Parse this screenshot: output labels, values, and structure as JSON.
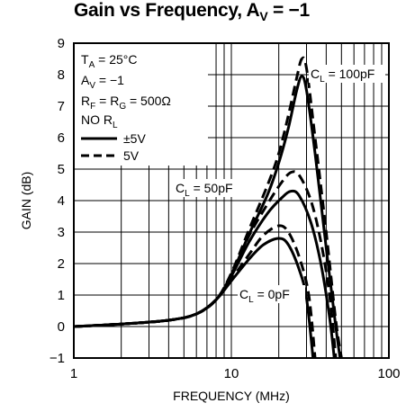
{
  "chart_data": {
    "type": "line",
    "title_main": "Gain vs Frequency, A",
    "title_sub": "V",
    "title_end": " = −1",
    "xlabel": "FREQUENCY (MHz)",
    "ylabel": "GAIN (dB)",
    "xscale": "log",
    "xlim": [
      1,
      100
    ],
    "ylim": [
      -1,
      9
    ],
    "grid": true,
    "x_ticks": [
      "1",
      "10",
      "100"
    ],
    "y_ticks": [
      "−1",
      "0",
      "1",
      "2",
      "3",
      "4",
      "5",
      "6",
      "7",
      "8",
      "9"
    ],
    "conditions": {
      "ta": {
        "main": "T",
        "sub": "A",
        "rest": " = 25°C"
      },
      "av": {
        "main": "A",
        "sub": "V",
        "rest": " = −1"
      },
      "rf": {
        "main": "R",
        "sub1": "F",
        "mid": " = R",
        "sub2": "G",
        "rest": " = 500Ω"
      },
      "nor": {
        "main": "NO R",
        "sub": "L"
      }
    },
    "legend": [
      {
        "label": "±5V",
        "style": "solid"
      },
      {
        "label": "5V",
        "style": "dashed"
      }
    ],
    "annotations": [
      {
        "id": "cl100",
        "main": "C",
        "sub": "L",
        "rest": " = 100pF"
      },
      {
        "id": "cl50",
        "main": "C",
        "sub": "L",
        "rest": " = 50pF"
      },
      {
        "id": "cl0",
        "main": "C",
        "sub": "L",
        "rest": " = 0pF"
      }
    ],
    "series": [
      {
        "supply": "±5V",
        "cl": "0pF",
        "style": "solid",
        "points": [
          [
            1,
            0
          ],
          [
            2,
            0.08
          ],
          [
            4,
            0.2
          ],
          [
            6,
            0.4
          ],
          [
            8,
            0.85
          ],
          [
            10,
            1.45
          ],
          [
            13,
            2.15
          ],
          [
            16,
            2.6
          ],
          [
            20,
            2.8
          ],
          [
            23,
            2.6
          ],
          [
            27,
            1.8
          ],
          [
            30,
            0.9
          ],
          [
            33,
            -1
          ]
        ]
      },
      {
        "supply": "5V",
        "cl": "0pF",
        "style": "dashed",
        "points": [
          [
            1,
            0
          ],
          [
            2,
            0.08
          ],
          [
            4,
            0.2
          ],
          [
            6,
            0.4
          ],
          [
            8,
            0.85
          ],
          [
            10,
            1.5
          ],
          [
            13,
            2.3
          ],
          [
            16,
            2.9
          ],
          [
            20,
            3.2
          ],
          [
            23,
            3.0
          ],
          [
            27,
            2.2
          ],
          [
            31,
            1.0
          ],
          [
            34,
            -1
          ]
        ]
      },
      {
        "supply": "±5V",
        "cl": "50pF",
        "style": "solid",
        "points": [
          [
            1,
            0
          ],
          [
            2,
            0.08
          ],
          [
            4,
            0.2
          ],
          [
            6,
            0.4
          ],
          [
            8,
            0.85
          ],
          [
            10,
            1.6
          ],
          [
            13,
            2.7
          ],
          [
            17,
            3.6
          ],
          [
            21,
            4.1
          ],
          [
            24,
            4.3
          ],
          [
            27,
            4.15
          ],
          [
            32,
            3.3
          ],
          [
            37,
            2.0
          ],
          [
            42,
            0.3
          ],
          [
            45,
            -1
          ]
        ]
      },
      {
        "supply": "5V",
        "cl": "50pF",
        "style": "dashed",
        "points": [
          [
            1,
            0
          ],
          [
            2,
            0.08
          ],
          [
            4,
            0.2
          ],
          [
            6,
            0.4
          ],
          [
            8,
            0.85
          ],
          [
            10,
            1.65
          ],
          [
            13,
            2.9
          ],
          [
            17,
            3.9
          ],
          [
            21,
            4.6
          ],
          [
            24,
            4.9
          ],
          [
            27,
            4.8
          ],
          [
            32,
            4.0
          ],
          [
            37,
            2.7
          ],
          [
            42,
            1.0
          ],
          [
            46,
            -1
          ]
        ]
      },
      {
        "supply": "±5V",
        "cl": "100pF",
        "style": "solid",
        "points": [
          [
            1,
            0
          ],
          [
            2,
            0.08
          ],
          [
            4,
            0.2
          ],
          [
            6,
            0.4
          ],
          [
            8,
            0.85
          ],
          [
            10,
            1.65
          ],
          [
            13,
            2.95
          ],
          [
            17,
            4.2
          ],
          [
            20,
            5.2
          ],
          [
            23,
            6.3
          ],
          [
            26,
            7.5
          ],
          [
            28,
            7.95
          ],
          [
            30,
            7.5
          ],
          [
            34,
            5.5
          ],
          [
            40,
            2.5
          ],
          [
            46,
            0.0
          ],
          [
            49,
            -1
          ]
        ]
      },
      {
        "supply": "5V",
        "cl": "100pF",
        "style": "dashed",
        "points": [
          [
            1,
            0
          ],
          [
            2,
            0.08
          ],
          [
            4,
            0.2
          ],
          [
            6,
            0.4
          ],
          [
            8,
            0.85
          ],
          [
            10,
            1.7
          ],
          [
            13,
            3.1
          ],
          [
            17,
            4.5
          ],
          [
            20,
            5.5
          ],
          [
            23,
            6.7
          ],
          [
            26,
            7.9
          ],
          [
            28,
            8.5
          ],
          [
            30,
            8.2
          ],
          [
            34,
            6.0
          ],
          [
            40,
            3.0
          ],
          [
            46,
            0.2
          ],
          [
            50,
            -1
          ]
        ]
      }
    ]
  }
}
